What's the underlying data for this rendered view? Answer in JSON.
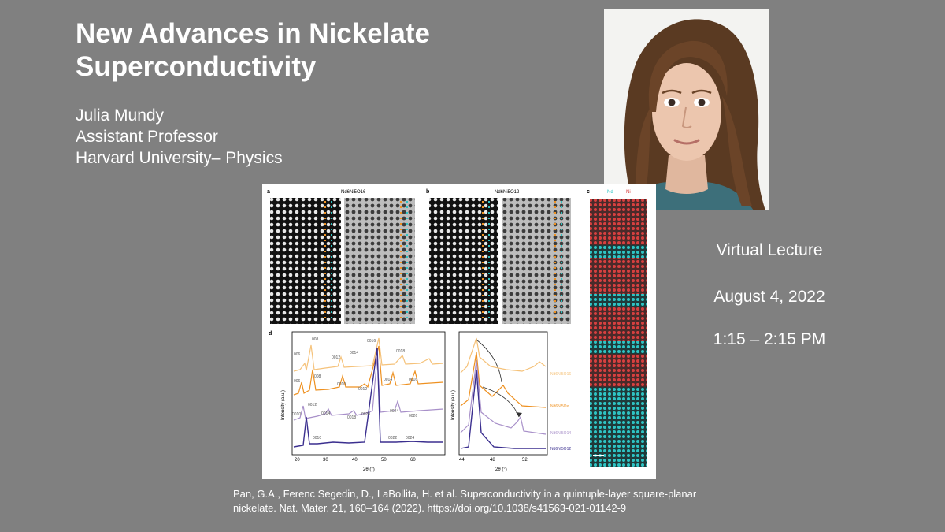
{
  "slide": {
    "title": "New Advances in Nickelate Superconductivity",
    "speaker": {
      "name": "Julia Mundy",
      "role": "Assistant Professor",
      "affiliation": "Harvard University– Physics"
    },
    "event": {
      "type": "Virtual Lecture",
      "date": "August 4, 2022",
      "time": "1:15  – 2:15 PM"
    },
    "citation": {
      "line1": "Pan, G.A., Ferenc Segedin, D., LaBollita, H. et al. Superconductivity in a quintuple-layer square-planar",
      "line2": "nickelate. Nat. Mater. 21, 160–164 (2022). https://doi.org/10.1038/s41563-021-01142-9"
    }
  },
  "figure": {
    "panel_a": "a",
    "panel_a_title": "Nd6Ni5O16",
    "panel_b": "b",
    "panel_b_title": "Nd6Ni5O12",
    "panel_c": "c",
    "legend_nd": "Nd",
    "legend_ni": "Ni",
    "panel_d": "d",
    "y_label": "Intensity (a.u.)",
    "x_label": "2θ (°)",
    "x_ticks_left": [
      "20",
      "30",
      "40",
      "50",
      "60"
    ],
    "x_ticks_right": [
      "44",
      "48",
      "52"
    ],
    "peak_labels": [
      "006",
      "008",
      "0012",
      "0014",
      "0016",
      "0018",
      "006",
      "008",
      "0010",
      "0012",
      "0014",
      "0016",
      "0010",
      "0012",
      "0014",
      "0018",
      "0020",
      "0024",
      "0026",
      "0010",
      "0022",
      "0024"
    ],
    "series_labels": [
      "Nd6Ni5O16",
      "Nd6Ni5Ox",
      "Nd6Ni5O14",
      "Nd6Ni5O12"
    ],
    "colors": {
      "orange_light": "#f5c27a",
      "orange": "#ee9121",
      "lavender": "#a890c9",
      "navy": "#3b2f8f",
      "teal": "#2ec4c4",
      "red": "#d8403f"
    }
  }
}
